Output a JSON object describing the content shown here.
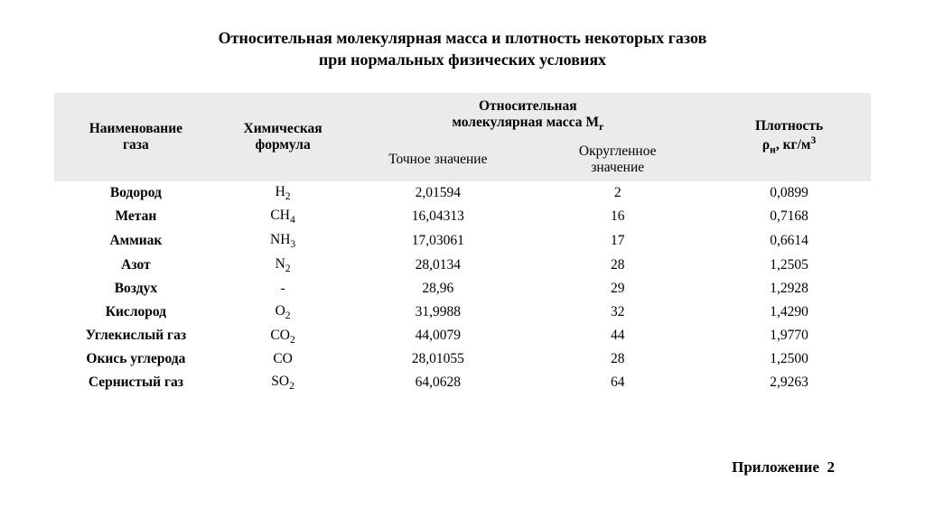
{
  "title_line1": "Относительная молекулярная масса и плотность некоторых газов",
  "title_line2": "при нормальных физических условиях",
  "headers": {
    "name_l1": "Наименование",
    "name_l2": "газа",
    "formula_l1": "Химическая",
    "formula_l2": "формула",
    "mass_group_l1": "Относительная",
    "mass_group_l2_pre": "молекулярная масса М",
    "mass_group_l2_sub": "r",
    "exact": "Точное значение",
    "rounded_l1": "Округленное",
    "rounded_l2": "значение",
    "density_l1": "Плотность",
    "density_l2_pre": "ρ",
    "density_l2_sub": "н",
    "density_l2_post": ", кг/м",
    "density_l2_sup": "3"
  },
  "rows": [
    {
      "name": "Водород",
      "formula_base": "Н",
      "formula_sub": "2",
      "exact": "2,01594",
      "rounded": "2",
      "density": "0,0899"
    },
    {
      "name": "Метан",
      "formula_base": "СН",
      "formula_sub": "4",
      "exact": "16,04313",
      "rounded": "16",
      "density": "0,7168"
    },
    {
      "name": "Аммиак",
      "formula_base": "NH",
      "formula_sub": "3",
      "exact": "17,03061",
      "rounded": "17",
      "density": "0,6614"
    },
    {
      "name": "Азот",
      "formula_base": "N",
      "formula_sub": "2",
      "exact": "28,0134",
      "rounded": "28",
      "density": "1,2505"
    },
    {
      "name": "Воздух",
      "formula_base": "-",
      "formula_sub": "",
      "exact": "28,96",
      "rounded": "29",
      "density": "1,2928"
    },
    {
      "name": "Кислород",
      "formula_base": "О",
      "formula_sub": "2",
      "exact": "31,9988",
      "rounded": "32",
      "density": "1,4290"
    },
    {
      "name": "Углекислый газ",
      "formula_base": "СО",
      "formula_sub": "2",
      "exact": "44,0079",
      "rounded": "44",
      "density": "1,9770"
    },
    {
      "name": "Окись углерода",
      "formula_base": "СО",
      "formula_sub": "",
      "exact": "28,01055",
      "rounded": "28",
      "density": "1,2500"
    },
    {
      "name": "Сернистый газ",
      "formula_base": "SO",
      "formula_sub": "2",
      "exact": "64,0628",
      "rounded": "64",
      "density": "2,9263"
    }
  ],
  "appendix": "Приложение  2",
  "style": {
    "type": "table",
    "columns": [
      "Наименование газа",
      "Химическая формула",
      "Точное значение",
      "Округленное значение",
      "Плотность ρн, кг/м³"
    ],
    "header_bg": "#ebebeb",
    "page_bg": "#ffffff",
    "text_color": "#000000",
    "font_family": "Times New Roman",
    "title_fontsize_pt": 14,
    "body_fontsize_pt": 12,
    "col_widths_pct": [
      20,
      16,
      22,
      22,
      20
    ],
    "name_col_bold": true
  }
}
